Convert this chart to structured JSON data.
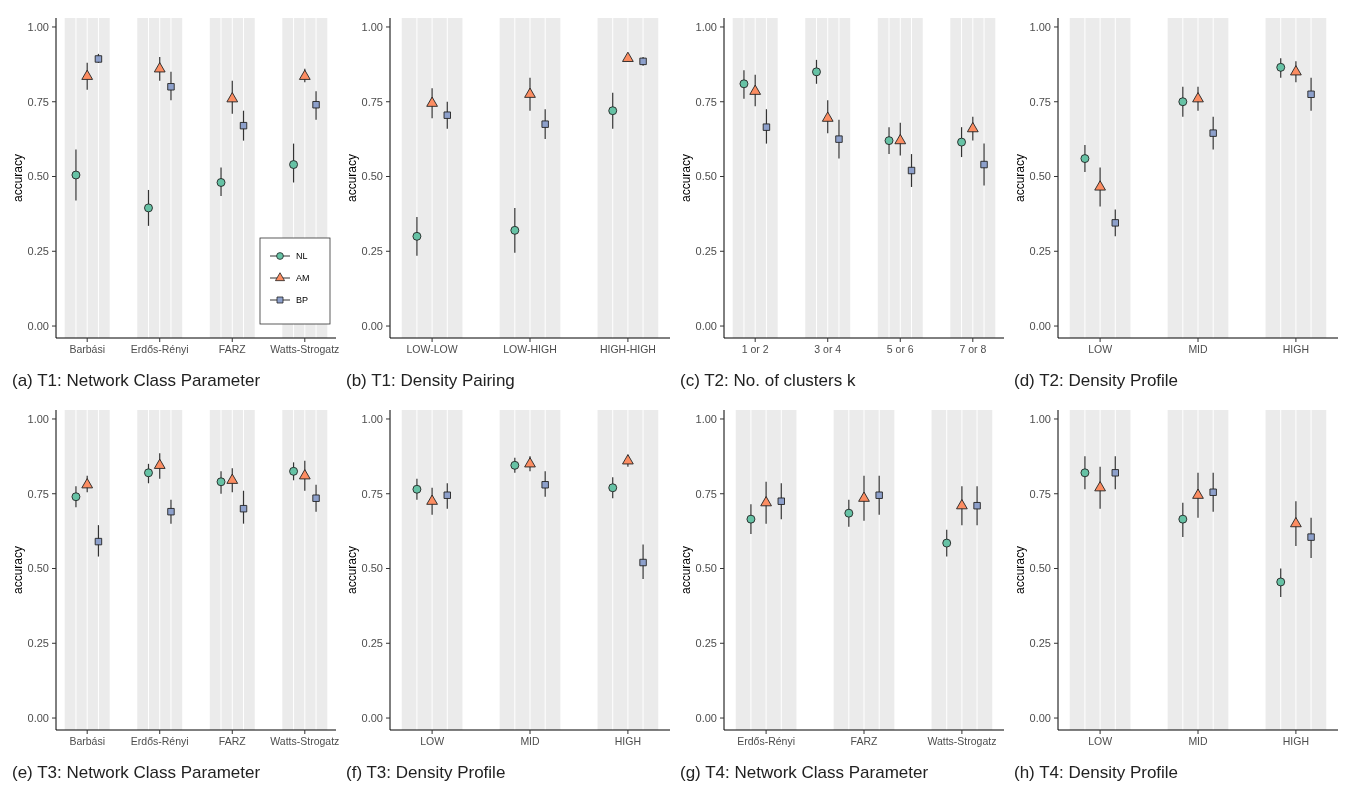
{
  "chart_data": [
    {
      "type": "scatter",
      "title": "(a) T1: Network Class Parameter",
      "ylabel": "accuracy",
      "categories": [
        "Barbási",
        "Erdős-Rényi",
        "FARZ",
        "Watts-Strogatz"
      ],
      "ylim": [
        -0.04,
        1.03
      ],
      "yticks": [
        {
          "value": 0,
          "label": "0.00"
        },
        {
          "value": 0.25,
          "label": "0.25"
        },
        {
          "value": 0.5,
          "label": "0.50"
        },
        {
          "value": 0.75,
          "label": "0.75"
        },
        {
          "value": 1,
          "label": "1.00"
        }
      ],
      "grid": "x",
      "legend": "bottom right",
      "bands": [
        {
          "axis": "x",
          "from": "Barbási",
          "to": "Barbási",
          "color": "#ebebeb"
        },
        {
          "axis": "x",
          "from": "Erdős-Rényi",
          "to": "Erdős-Rényi",
          "color": "#ebebeb"
        },
        {
          "axis": "x",
          "from": "FARZ",
          "to": "FARZ",
          "color": "#ebebeb"
        },
        {
          "axis": "x",
          "from": "Watts-Strogatz",
          "to": "Watts-Strogatz",
          "color": "#ebebeb"
        }
      ],
      "series": [
        {
          "name": "NL",
          "color": "#66c2a5",
          "marker": "circle",
          "values": [
            0.505,
            0.395,
            0.48,
            0.54
          ],
          "errors": [
            [
              0.42,
              0.59
            ],
            [
              0.335,
              0.455
            ],
            [
              0.435,
              0.53
            ],
            [
              0.48,
              0.61
            ]
          ]
        },
        {
          "name": "AM",
          "color": "#fc8d62",
          "marker": "triangle",
          "values": [
            0.835,
            0.86,
            0.76,
            0.835
          ],
          "errors": [
            [
              0.79,
              0.88
            ],
            [
              0.82,
              0.9
            ],
            [
              0.71,
              0.82
            ],
            [
              0.815,
              0.86
            ]
          ]
        },
        {
          "name": "BP",
          "color": "#8da0cb",
          "marker": "square",
          "values": [
            0.893,
            0.8,
            0.67,
            0.74
          ],
          "errors": [
            [
              0.88,
              0.91
            ],
            [
              0.755,
              0.85
            ],
            [
              0.62,
              0.72
            ],
            [
              0.69,
              0.785
            ]
          ]
        }
      ]
    },
    {
      "type": "scatter",
      "title": "(b) T1: Density Pairing",
      "ylabel": "accuracy",
      "categories": [
        "LOW-LOW",
        "LOW-HIGH",
        "HIGH-HIGH"
      ],
      "ylim": [
        -0.04,
        1.03
      ],
      "yticks": [
        {
          "value": 0,
          "label": "0.00"
        },
        {
          "value": 0.25,
          "label": "0.25"
        },
        {
          "value": 0.5,
          "label": "0.50"
        },
        {
          "value": 0.75,
          "label": "0.75"
        },
        {
          "value": 1,
          "label": "1.00"
        }
      ],
      "grid": "x",
      "legend": false,
      "bands": [
        {
          "axis": "x",
          "from": "LOW-LOW",
          "to": "LOW-LOW",
          "color": "#ebebeb"
        },
        {
          "axis": "x",
          "from": "LOW-HIGH",
          "to": "LOW-HIGH",
          "color": "#ebebeb"
        },
        {
          "axis": "x",
          "from": "HIGH-HIGH",
          "to": "HIGH-HIGH",
          "color": "#ebebeb"
        }
      ],
      "series": [
        {
          "color": "#66c2a5",
          "marker": "circle",
          "values": [
            0.3,
            0.32,
            0.72
          ],
          "errors": [
            [
              0.235,
              0.365
            ],
            [
              0.245,
              0.395
            ],
            [
              0.66,
              0.78
            ]
          ]
        },
        {
          "color": "#fc8d62",
          "marker": "triangle",
          "values": [
            0.745,
            0.775,
            0.895
          ],
          "errors": [
            [
              0.695,
              0.795
            ],
            [
              0.72,
              0.83
            ],
            [
              0.885,
              0.905
            ]
          ]
        },
        {
          "color": "#8da0cb",
          "marker": "square",
          "values": [
            0.705,
            0.675,
            0.885
          ],
          "errors": [
            [
              0.66,
              0.75
            ],
            [
              0.625,
              0.725
            ],
            [
              0.87,
              0.9
            ]
          ]
        }
      ]
    },
    {
      "type": "scatter",
      "title": "(c) T2: No. of clusters k",
      "ylabel": "accuracy",
      "categories": [
        "1 or 2",
        "3 or 4",
        "5 or 6",
        "7 or 8"
      ],
      "ylim": [
        -0.04,
        1.03
      ],
      "yticks": [
        {
          "value": 0,
          "label": "0.00"
        },
        {
          "value": 0.25,
          "label": "0.25"
        },
        {
          "value": 0.5,
          "label": "0.50"
        },
        {
          "value": 0.75,
          "label": "0.75"
        },
        {
          "value": 1,
          "label": "1.00"
        }
      ],
      "grid": "x",
      "legend": false,
      "bands": [
        {
          "axis": "x",
          "from": "1 or 2",
          "to": "1 or 2",
          "color": "#ebebeb"
        },
        {
          "axis": "x",
          "from": "3 or 4",
          "to": "3 or 4",
          "color": "#ebebeb"
        },
        {
          "axis": "x",
          "from": "5 or 6",
          "to": "5 or 6",
          "color": "#ebebeb"
        },
        {
          "axis": "x",
          "from": "7 or 8",
          "to": "7 or 8",
          "color": "#ebebeb"
        }
      ],
      "series": [
        {
          "color": "#66c2a5",
          "marker": "circle",
          "values": [
            0.81,
            0.85,
            0.62,
            0.615
          ],
          "errors": [
            [
              0.76,
              0.855
            ],
            [
              0.81,
              0.89
            ],
            [
              0.575,
              0.665
            ],
            [
              0.565,
              0.665
            ]
          ]
        },
        {
          "color": "#fc8d62",
          "marker": "triangle",
          "values": [
            0.785,
            0.695,
            0.62,
            0.66
          ],
          "errors": [
            [
              0.735,
              0.84
            ],
            [
              0.645,
              0.755
            ],
            [
              0.57,
              0.68
            ],
            [
              0.62,
              0.7
            ]
          ]
        },
        {
          "color": "#8da0cb",
          "marker": "square",
          "values": [
            0.665,
            0.625,
            0.52,
            0.54
          ],
          "errors": [
            [
              0.61,
              0.725
            ],
            [
              0.56,
              0.69
            ],
            [
              0.465,
              0.575
            ],
            [
              0.47,
              0.61
            ]
          ]
        }
      ]
    },
    {
      "type": "scatter",
      "title": "(d) T2: Density Profile",
      "ylabel": "accuracy",
      "categories": [
        "LOW",
        "MID",
        "HIGH"
      ],
      "ylim": [
        -0.04,
        1.03
      ],
      "yticks": [
        {
          "value": 0,
          "label": "0.00"
        },
        {
          "value": 0.25,
          "label": "0.25"
        },
        {
          "value": 0.5,
          "label": "0.50"
        },
        {
          "value": 0.75,
          "label": "0.75"
        },
        {
          "value": 1,
          "label": "1.00"
        }
      ],
      "grid": "x",
      "legend": false,
      "bands": [
        {
          "axis": "x",
          "from": "LOW",
          "to": "LOW",
          "color": "#ebebeb"
        },
        {
          "axis": "x",
          "from": "MID",
          "to": "MID",
          "color": "#ebebeb"
        },
        {
          "axis": "x",
          "from": "HIGH",
          "to": "HIGH",
          "color": "#ebebeb"
        }
      ],
      "series": [
        {
          "color": "#66c2a5",
          "marker": "circle",
          "values": [
            0.56,
            0.75,
            0.865
          ],
          "errors": [
            [
              0.515,
              0.605
            ],
            [
              0.7,
              0.8
            ],
            [
              0.83,
              0.895
            ]
          ]
        },
        {
          "color": "#fc8d62",
          "marker": "triangle",
          "values": [
            0.465,
            0.76,
            0.85
          ],
          "errors": [
            [
              0.4,
              0.53
            ],
            [
              0.72,
              0.8
            ],
            [
              0.815,
              0.885
            ]
          ]
        },
        {
          "color": "#8da0cb",
          "marker": "square",
          "values": [
            0.345,
            0.645,
            0.775
          ],
          "errors": [
            [
              0.3,
              0.39
            ],
            [
              0.59,
              0.7
            ],
            [
              0.72,
              0.83
            ]
          ]
        }
      ]
    },
    {
      "type": "scatter",
      "title": "(e) T3: Network Class Parameter",
      "ylabel": "accuracy",
      "categories": [
        "Barbási",
        "Erdős-Rényi",
        "FARZ",
        "Watts-Strogatz"
      ],
      "ylim": [
        -0.04,
        1.03
      ],
      "yticks": [
        {
          "value": 0,
          "label": "0.00"
        },
        {
          "value": 0.25,
          "label": "0.25"
        },
        {
          "value": 0.5,
          "label": "0.50"
        },
        {
          "value": 0.75,
          "label": "0.75"
        },
        {
          "value": 1,
          "label": "1.00"
        }
      ],
      "grid": "x",
      "legend": false,
      "bands": [
        {
          "axis": "x",
          "from": "Barbási",
          "to": "Barbási",
          "color": "#ebebeb"
        },
        {
          "axis": "x",
          "from": "Erdős-Rényi",
          "to": "Erdős-Rényi",
          "color": "#ebebeb"
        },
        {
          "axis": "x",
          "from": "FARZ",
          "to": "FARZ",
          "color": "#ebebeb"
        },
        {
          "axis": "x",
          "from": "Watts-Strogatz",
          "to": "Watts-Strogatz",
          "color": "#ebebeb"
        }
      ],
      "series": [
        {
          "color": "#66c2a5",
          "marker": "circle",
          "values": [
            0.74,
            0.82,
            0.79,
            0.825
          ],
          "errors": [
            [
              0.705,
              0.775
            ],
            [
              0.785,
              0.85
            ],
            [
              0.75,
              0.825
            ],
            [
              0.795,
              0.855
            ]
          ]
        },
        {
          "color": "#fc8d62",
          "marker": "triangle",
          "values": [
            0.78,
            0.845,
            0.795,
            0.81
          ],
          "errors": [
            [
              0.755,
              0.81
            ],
            [
              0.8,
              0.885
            ],
            [
              0.755,
              0.835
            ],
            [
              0.76,
              0.86
            ]
          ]
        },
        {
          "color": "#8da0cb",
          "marker": "square",
          "values": [
            0.59,
            0.69,
            0.7,
            0.735
          ],
          "errors": [
            [
              0.54,
              0.645
            ],
            [
              0.65,
              0.73
            ],
            [
              0.65,
              0.76
            ],
            [
              0.69,
              0.78
            ]
          ]
        }
      ]
    },
    {
      "type": "scatter",
      "title": "(f) T3: Density Profile",
      "ylabel": "accuracy",
      "categories": [
        "LOW",
        "MID",
        "HIGH"
      ],
      "ylim": [
        -0.04,
        1.03
      ],
      "yticks": [
        {
          "value": 0,
          "label": "0.00"
        },
        {
          "value": 0.25,
          "label": "0.25"
        },
        {
          "value": 0.5,
          "label": "0.50"
        },
        {
          "value": 0.75,
          "label": "0.75"
        },
        {
          "value": 1,
          "label": "1.00"
        }
      ],
      "grid": "x",
      "legend": false,
      "bands": [
        {
          "axis": "x",
          "from": "LOW",
          "to": "LOW",
          "color": "#ebebeb"
        },
        {
          "axis": "x",
          "from": "MID",
          "to": "MID",
          "color": "#ebebeb"
        },
        {
          "axis": "x",
          "from": "HIGH",
          "to": "HIGH",
          "color": "#ebebeb"
        }
      ],
      "series": [
        {
          "color": "#66c2a5",
          "marker": "circle",
          "values": [
            0.765,
            0.845,
            0.77
          ],
          "errors": [
            [
              0.73,
              0.8
            ],
            [
              0.82,
              0.87
            ],
            [
              0.735,
              0.805
            ]
          ]
        },
        {
          "color": "#fc8d62",
          "marker": "triangle",
          "values": [
            0.725,
            0.85,
            0.86
          ],
          "errors": [
            [
              0.68,
              0.77
            ],
            [
              0.825,
              0.875
            ],
            [
              0.84,
              0.88
            ]
          ]
        },
        {
          "color": "#8da0cb",
          "marker": "square",
          "values": [
            0.745,
            0.78,
            0.52
          ],
          "errors": [
            [
              0.7,
              0.785
            ],
            [
              0.74,
              0.825
            ],
            [
              0.465,
              0.58
            ]
          ]
        }
      ]
    },
    {
      "type": "scatter",
      "title": "(g) T4: Network Class Parameter",
      "ylabel": "accuracy",
      "categories": [
        "Erdős-Rényi",
        "FARZ",
        "Watts-Strogatz"
      ],
      "ylim": [
        -0.04,
        1.03
      ],
      "yticks": [
        {
          "value": 0,
          "label": "0.00"
        },
        {
          "value": 0.25,
          "label": "0.25"
        },
        {
          "value": 0.5,
          "label": "0.50"
        },
        {
          "value": 0.75,
          "label": "0.75"
        },
        {
          "value": 1,
          "label": "1.00"
        }
      ],
      "grid": "x",
      "legend": false,
      "bands": [
        {
          "axis": "x",
          "from": "Erdős-Rényi",
          "to": "Erdős-Rényi",
          "color": "#ebebeb"
        },
        {
          "axis": "x",
          "from": "FARZ",
          "to": "FARZ",
          "color": "#ebebeb"
        },
        {
          "axis": "x",
          "from": "Watts-Strogatz",
          "to": "Watts-Strogatz",
          "color": "#ebebeb"
        }
      ],
      "series": [
        {
          "color": "#66c2a5",
          "marker": "circle",
          "values": [
            0.665,
            0.685,
            0.585
          ],
          "errors": [
            [
              0.615,
              0.715
            ],
            [
              0.64,
              0.73
            ],
            [
              0.54,
              0.63
            ]
          ]
        },
        {
          "color": "#fc8d62",
          "marker": "triangle",
          "values": [
            0.72,
            0.735,
            0.71
          ],
          "errors": [
            [
              0.65,
              0.79
            ],
            [
              0.66,
              0.81
            ],
            [
              0.645,
              0.775
            ]
          ]
        },
        {
          "color": "#8da0cb",
          "marker": "square",
          "values": [
            0.725,
            0.745,
            0.71
          ],
          "errors": [
            [
              0.665,
              0.785
            ],
            [
              0.68,
              0.81
            ],
            [
              0.645,
              0.775
            ]
          ]
        }
      ]
    },
    {
      "type": "scatter",
      "title": "(h) T4: Density Profile",
      "ylabel": "accuracy",
      "categories": [
        "LOW",
        "MID",
        "HIGH"
      ],
      "ylim": [
        -0.04,
        1.03
      ],
      "yticks": [
        {
          "value": 0,
          "label": "0.00"
        },
        {
          "value": 0.25,
          "label": "0.25"
        },
        {
          "value": 0.5,
          "label": "0.50"
        },
        {
          "value": 0.75,
          "label": "0.75"
        },
        {
          "value": 1,
          "label": "1.00"
        }
      ],
      "grid": "x",
      "legend": false,
      "bands": [
        {
          "axis": "x",
          "from": "LOW",
          "to": "LOW",
          "color": "#ebebeb"
        },
        {
          "axis": "x",
          "from": "MID",
          "to": "MID",
          "color": "#ebebeb"
        },
        {
          "axis": "x",
          "from": "HIGH",
          "to": "HIGH",
          "color": "#ebebeb"
        }
      ],
      "series": [
        {
          "color": "#66c2a5",
          "marker": "circle",
          "values": [
            0.82,
            0.665,
            0.455
          ],
          "errors": [
            [
              0.765,
              0.875
            ],
            [
              0.605,
              0.72
            ],
            [
              0.405,
              0.5
            ]
          ]
        },
        {
          "color": "#fc8d62",
          "marker": "triangle",
          "values": [
            0.77,
            0.745,
            0.65
          ],
          "errors": [
            [
              0.7,
              0.84
            ],
            [
              0.67,
              0.82
            ],
            [
              0.575,
              0.725
            ]
          ]
        },
        {
          "color": "#8da0cb",
          "marker": "square",
          "values": [
            0.82,
            0.755,
            0.605
          ],
          "errors": [
            [
              0.765,
              0.875
            ],
            [
              0.69,
              0.82
            ],
            [
              0.535,
              0.67
            ]
          ]
        }
      ]
    }
  ]
}
